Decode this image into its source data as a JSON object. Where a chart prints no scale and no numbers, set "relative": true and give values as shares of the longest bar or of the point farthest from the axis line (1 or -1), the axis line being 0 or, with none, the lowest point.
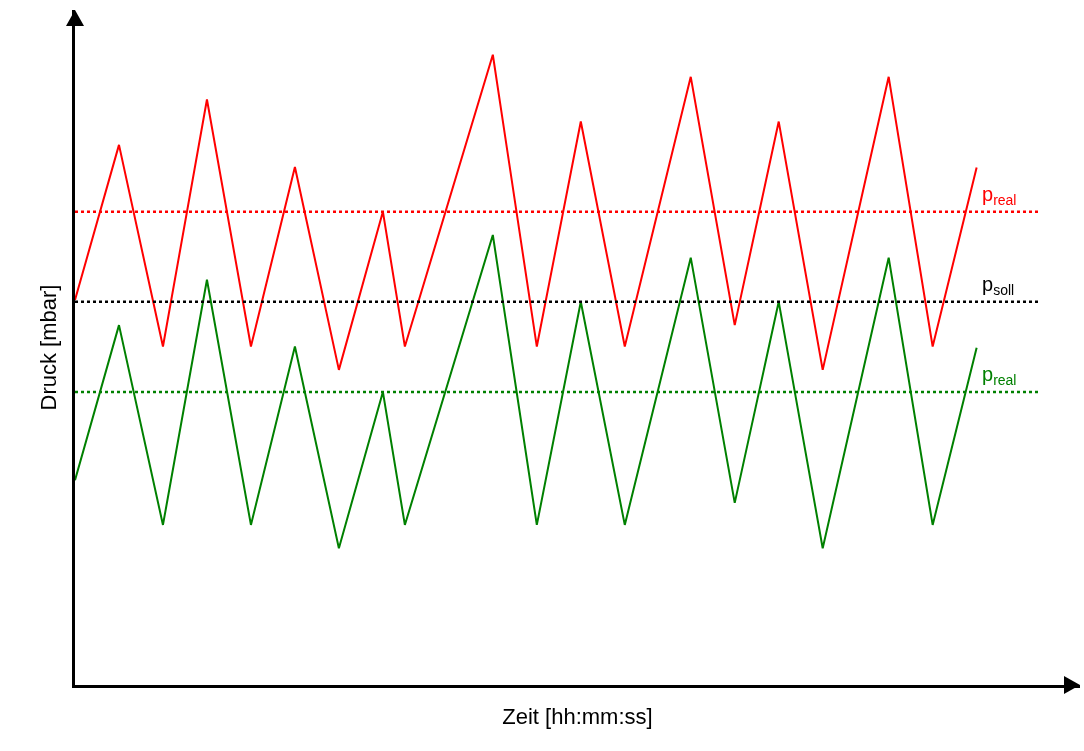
{
  "chart_data": {
    "type": "line",
    "relative": true,
    "xlabel": "Zeit [hh:mm:ss]",
    "ylabel": "Druck [mbar]",
    "marker": "none",
    "line_style": "solid",
    "categories": [
      null,
      null,
      null,
      null,
      null,
      null,
      null,
      null,
      null,
      null,
      null,
      null,
      null,
      null,
      null,
      null,
      null,
      null,
      null,
      null,
      null,
      null,
      null,
      null,
      null,
      null,
      null,
      null,
      null,
      null,
      null,
      null,
      null,
      null,
      null,
      null,
      null,
      null,
      null,
      null,
      null,
      null,
      null,
      null,
      null,
      null
    ],
    "series": [
      {
        "color": "#ff0000",
        "values": [
          0.611,
          null,
          0.857,
          null,
          0.537,
          null,
          0.929,
          null,
          0.537,
          null,
          0.822,
          null,
          0.5,
          null,
          0.751,
          0.537,
          null,
          null,
          null,
          1,
          null,
          0.537,
          null,
          0.894,
          null,
          0.537,
          null,
          null,
          0.965,
          null,
          0.571,
          null,
          0.894,
          null,
          0.5,
          null,
          null,
          0.965,
          null,
          0.537,
          null,
          0.821,
          null,
          null,
          null,
          null
        ]
      },
      {
        "color": "#008000",
        "values": [
          0.325,
          null,
          0.571,
          null,
          0.254,
          null,
          0.643,
          null,
          0.254,
          null,
          0.537,
          null,
          0.217,
          null,
          0.465,
          0.254,
          null,
          null,
          null,
          0.714,
          null,
          0.254,
          null,
          0.608,
          null,
          0.254,
          null,
          null,
          0.678,
          null,
          0.289,
          null,
          0.608,
          null,
          0.217,
          null,
          null,
          0.678,
          null,
          0.254,
          null,
          0.535,
          null,
          null,
          null,
          null
        ]
      }
    ],
    "ref_lines": [
      {
        "axis": "y",
        "value": 0.751,
        "label": "p$_{real}$",
        "color": "#ff0000",
        "line_style": "dotted"
      },
      {
        "axis": "y",
        "value": 0.608,
        "label": "p$_{soll}$",
        "color": "#000000",
        "line_style": "dotted"
      },
      {
        "axis": "y",
        "value": 0.465,
        "label": "p$_{real}$",
        "color": "#008000",
        "line_style": "dotted"
      }
    ]
  }
}
